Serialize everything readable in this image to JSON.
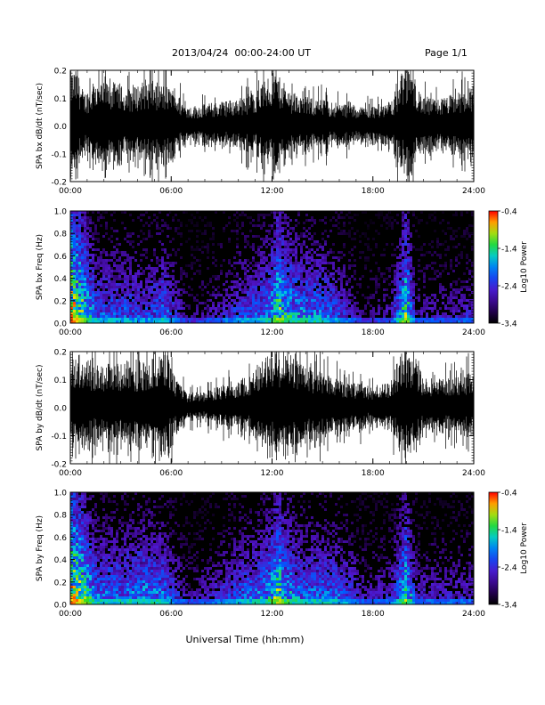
{
  "header": {
    "title": "2013/04/24  00:00-24:00 UT",
    "page": "Page 1/1"
  },
  "xlabel": "Universal Time (hh:mm)",
  "chart_data": [
    {
      "type": "line",
      "panel": "bx-dbdt",
      "ylabel": "SPA bx dB/dt (nT/sec)",
      "x_ticks": [
        "00:00",
        "06:00",
        "12:00",
        "18:00",
        "24:00"
      ],
      "x_range_hours": [
        0,
        24
      ],
      "ylim": [
        -0.2,
        0.2
      ],
      "y_ticks": [
        "-0.2",
        "-0.1",
        "0.0",
        "0.1",
        "0.2"
      ],
      "series_color": "#000000",
      "amplitude_envelope": {
        "hours": [
          0,
          0.4,
          0.8,
          1.5,
          2.5,
          3.5,
          4.5,
          5.5,
          6.0,
          7.0,
          8.0,
          9.0,
          10.0,
          11.0,
          11.5,
          12.2,
          12.8,
          13.5,
          14.5,
          15.5,
          16.5,
          17.5,
          18.5,
          19.3,
          19.7,
          20.3,
          21.0,
          22.0,
          23.0,
          24.0
        ],
        "amplitude": [
          0.2,
          0.2,
          0.12,
          0.15,
          0.16,
          0.13,
          0.17,
          0.15,
          0.14,
          0.07,
          0.08,
          0.09,
          0.1,
          0.13,
          0.16,
          0.2,
          0.14,
          0.11,
          0.1,
          0.09,
          0.08,
          0.07,
          0.08,
          0.1,
          0.2,
          0.2,
          0.1,
          0.1,
          0.12,
          0.15
        ]
      }
    },
    {
      "type": "heatmap",
      "panel": "bx-spectrogram",
      "ylabel": "SPA bx Freq (Hz)",
      "x_ticks": [
        "00:00",
        "06:00",
        "12:00",
        "18:00",
        "24:00"
      ],
      "x_range_hours": [
        0,
        24
      ],
      "ylim": [
        0.0,
        1.0
      ],
      "y_ticks": [
        "0.0",
        "0.2",
        "0.4",
        "0.6",
        "0.8",
        "1.0"
      ],
      "colorbar": {
        "label": "Log10 Power",
        "range": [
          -3.4,
          -0.4
        ],
        "ticks": [
          "-0.4",
          "-1.4",
          "-2.4",
          "-3.4"
        ]
      },
      "activity": {
        "hours": [
          0,
          0.5,
          1.5,
          3.0,
          4.5,
          5.5,
          7.0,
          8.5,
          10.0,
          11.0,
          11.8,
          12.3,
          12.7,
          13.5,
          15.0,
          16.0,
          17.5,
          19.0,
          19.9,
          20.5,
          22.0,
          24.0
        ],
        "level": [
          1.0,
          0.9,
          0.5,
          0.5,
          0.45,
          0.55,
          0.2,
          0.3,
          0.45,
          0.5,
          0.6,
          0.85,
          0.7,
          0.6,
          0.55,
          0.45,
          0.2,
          0.3,
          0.85,
          0.3,
          0.3,
          0.35
        ]
      }
    },
    {
      "type": "line",
      "panel": "by-dbdt",
      "ylabel": "SPA by dB/dt (nT/sec)",
      "x_ticks": [
        "00:00",
        "06:00",
        "12:00",
        "18:00",
        "24:00"
      ],
      "x_range_hours": [
        0,
        24
      ],
      "ylim": [
        -0.2,
        0.2
      ],
      "y_ticks": [
        "-0.2",
        "-0.1",
        "0.0",
        "0.1",
        "0.2"
      ],
      "series_color": "#000000",
      "amplitude_envelope": {
        "hours": [
          0,
          0.5,
          1.0,
          2.0,
          3.0,
          4.0,
          5.0,
          5.8,
          6.3,
          7.0,
          8.0,
          9.0,
          10.0,
          11.0,
          11.8,
          12.3,
          13.0,
          14.0,
          15.0,
          16.0,
          17.0,
          18.0,
          19.0,
          19.7,
          20.3,
          21.0,
          22.0,
          23.0,
          24.0
        ],
        "amplitude": [
          0.2,
          0.2,
          0.17,
          0.16,
          0.17,
          0.16,
          0.18,
          0.2,
          0.1,
          0.05,
          0.06,
          0.08,
          0.1,
          0.13,
          0.2,
          0.2,
          0.2,
          0.15,
          0.13,
          0.11,
          0.09,
          0.08,
          0.09,
          0.2,
          0.2,
          0.11,
          0.1,
          0.11,
          0.13
        ]
      }
    },
    {
      "type": "heatmap",
      "panel": "by-spectrogram",
      "ylabel": "SPA by Freq (Hz)",
      "x_ticks": [
        "00:00",
        "06:00",
        "12:00",
        "18:00",
        "24:00"
      ],
      "x_range_hours": [
        0,
        24
      ],
      "ylim": [
        0.0,
        1.0
      ],
      "y_ticks": [
        "0.0",
        "0.2",
        "0.4",
        "0.6",
        "0.8",
        "1.0"
      ],
      "colorbar": {
        "label": "Log10 Power",
        "range": [
          -3.4,
          -0.4
        ],
        "ticks": [
          "-0.4",
          "-1.4",
          "-2.4",
          "-3.4"
        ]
      },
      "activity": {
        "hours": [
          0,
          0.5,
          1.5,
          3.0,
          4.5,
          5.5,
          7.0,
          8.5,
          10.0,
          11.0,
          11.8,
          12.3,
          12.7,
          13.5,
          15.0,
          16.0,
          17.5,
          19.0,
          19.9,
          20.5,
          22.0,
          24.0
        ],
        "level": [
          1.0,
          0.9,
          0.55,
          0.55,
          0.6,
          0.55,
          0.25,
          0.35,
          0.5,
          0.55,
          0.65,
          0.85,
          0.7,
          0.55,
          0.55,
          0.5,
          0.3,
          0.35,
          0.8,
          0.35,
          0.35,
          0.35
        ]
      }
    }
  ]
}
